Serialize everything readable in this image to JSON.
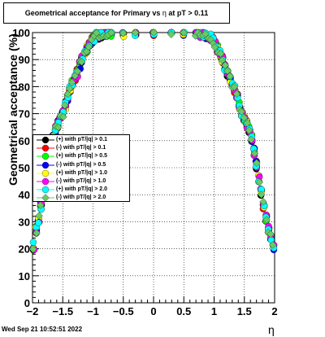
{
  "title": {
    "prefix": "Geometrical acceptance for Primary vs",
    "eta_symbol": "η",
    "suffix": "at pT > 0.11"
  },
  "datestamp": "Wed Sep 21 10:52:51 2022",
  "chart_data": {
    "type": "scatter",
    "xlabel": "η",
    "ylabel": "Geometrical acceptance (%)",
    "xlim": [
      -2,
      2
    ],
    "ylim": [
      0,
      100
    ],
    "x_ticks": [
      -2,
      -1.5,
      -1,
      -0.5,
      0,
      0.5,
      1,
      1.5,
      2
    ],
    "x_tick_labels": [
      "−2",
      "−1.5",
      "−1",
      "−0.5",
      "0",
      "0.5",
      "1",
      "1.5",
      "2"
    ],
    "y_ticks": [
      0,
      10,
      20,
      30,
      40,
      50,
      60,
      70,
      80,
      90,
      100
    ],
    "y_tick_labels": [
      "0",
      "10",
      "20",
      "30",
      "40",
      "50",
      "60",
      "70",
      "80",
      "90",
      "100"
    ],
    "grid": true,
    "legend_position": "middle-left",
    "series": [
      {
        "name": "(+) with pT/|q| > 0.1",
        "color": "#000000",
        "marker": "circle"
      },
      {
        "name": "(-) with pT/|q| > 0.1",
        "color": "#ff0000",
        "marker": "circle"
      },
      {
        "name": "(+) with pT/|q| > 0.5",
        "color": "#00ff00",
        "marker": "circle"
      },
      {
        "name": "(-) with pT/|q| > 0.5",
        "color": "#0000ff",
        "marker": "circle"
      },
      {
        "name": "(+) with pT/|q| > 1.0",
        "color": "#ffff00",
        "marker": "circle"
      },
      {
        "name": "(-) with pT/|q| > 1.0",
        "color": "#ff00ff",
        "marker": "circle"
      },
      {
        "name": "(+) with pT/|q| > 2.0",
        "color": "#00ffff",
        "marker": "circle"
      },
      {
        "name": "(-) with pT/|q| > 2.0",
        "color": "#66cc66",
        "marker": "diamond"
      }
    ],
    "curve": {
      "eta": [
        -1.98,
        -1.94,
        -1.9,
        -1.86,
        -1.82,
        -1.78,
        -1.74,
        -1.7,
        -1.66,
        -1.62,
        -1.58,
        -1.54,
        -1.5,
        -1.46,
        -1.42,
        -1.38,
        -1.34,
        -1.3,
        -1.26,
        -1.22,
        -1.18,
        -1.14,
        -1.1,
        -1.06,
        -1.02,
        -0.98,
        -0.94,
        -0.9,
        -0.86,
        -0.82,
        -0.78,
        -0.74,
        -0.7,
        -0.5,
        -0.3,
        0,
        0.3,
        0.5,
        0.7,
        0.74,
        0.78,
        0.82,
        0.86,
        0.9,
        0.94,
        0.98,
        1.02,
        1.06,
        1.1,
        1.14,
        1.18,
        1.22,
        1.26,
        1.3,
        1.34,
        1.38,
        1.42,
        1.46,
        1.5,
        1.54,
        1.58,
        1.62,
        1.66,
        1.7,
        1.74,
        1.78,
        1.82,
        1.86,
        1.9,
        1.94,
        1.98
      ],
      "acceptance": [
        21,
        27,
        31,
        36,
        41,
        46,
        51,
        56,
        61,
        64,
        66,
        68,
        70,
        73,
        76,
        79,
        81,
        83,
        85,
        88,
        90,
        92,
        94,
        96,
        97,
        98,
        99,
        99,
        99,
        99.5,
        100,
        100,
        100,
        100,
        100,
        100,
        100,
        100,
        100,
        100,
        99.5,
        99,
        99,
        99,
        98,
        97,
        96,
        94,
        92,
        90,
        87,
        85,
        83,
        81,
        79,
        76,
        73,
        70,
        68,
        66,
        64,
        61,
        56,
        51,
        46,
        41,
        36,
        31,
        27,
        24,
        21
      ]
    }
  }
}
